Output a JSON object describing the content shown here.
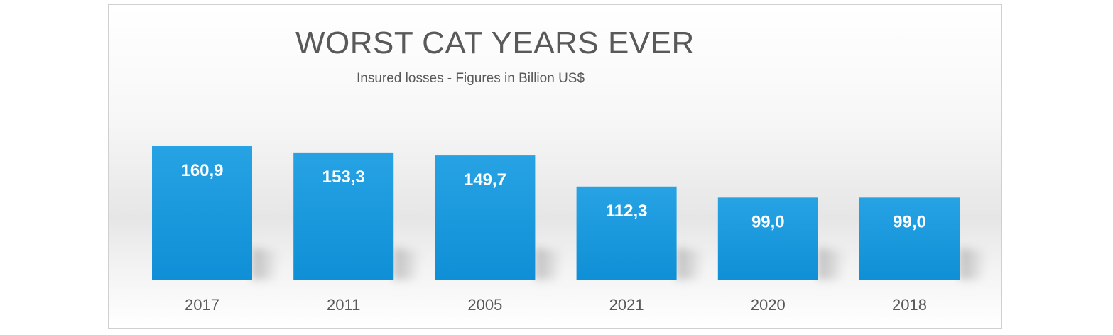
{
  "chart_data": {
    "type": "bar",
    "title": "WORST CAT YEARS EVER",
    "subtitle": "Insured losses - Figures in Billion US$",
    "categories": [
      "2017",
      "2011",
      "2005",
      "2021",
      "2020",
      "2018"
    ],
    "values": [
      160.9,
      153.3,
      149.7,
      112.3,
      99.0,
      99.0
    ],
    "data_labels": [
      "160,9",
      "153,3",
      "149,7",
      "112,3",
      "99,0",
      "99,0"
    ],
    "xlabel": "",
    "ylabel": "",
    "ylim": [
      0,
      160.9
    ],
    "grid": false,
    "legend": "none",
    "bar_color": "#0f8fd6",
    "bar_color_top": "#27a3e4",
    "label_color": "#ffffff",
    "tick_color": "#595959"
  }
}
